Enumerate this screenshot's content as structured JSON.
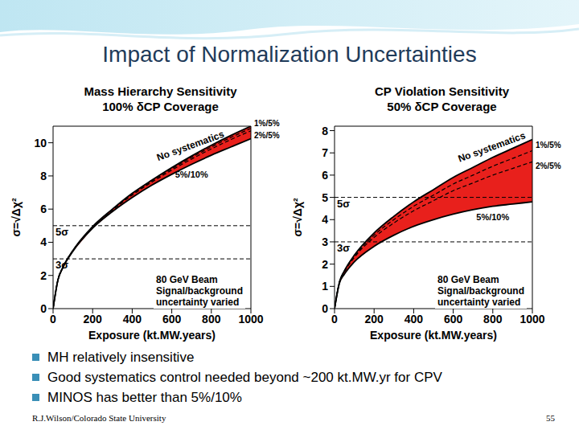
{
  "slide_title": "Impact of Normalization Uncertainties",
  "chart_data": [
    {
      "type": "line",
      "title": "Mass Hierarchy Sensitivity",
      "subtitle": "100% δCP Coverage",
      "x_label": "Exposure (kt.MW.years)",
      "y_label": "σ=√Δχ²",
      "color": "#e8201c",
      "x": [
        0,
        25,
        50,
        100,
        200,
        300,
        400,
        500,
        600,
        700,
        800,
        900,
        1000
      ],
      "series": [
        {
          "name": "No systematics",
          "color": "#000000",
          "line_style": "solid",
          "values": [
            0,
            1.75,
            2.5,
            3.5,
            4.95,
            6.0,
            6.95,
            7.75,
            8.5,
            9.2,
            9.85,
            10.45,
            11.0
          ]
        },
        {
          "name": "1%/5%",
          "color": "#000000",
          "line_style": "dashed",
          "values": [
            0,
            1.75,
            2.5,
            3.5,
            4.93,
            5.97,
            6.9,
            7.7,
            8.43,
            9.12,
            9.75,
            10.33,
            10.87
          ]
        },
        {
          "name": "2%/5%",
          "color": "#000000",
          "line_style": "dashed",
          "values": [
            0,
            1.75,
            2.5,
            3.48,
            4.9,
            5.93,
            6.85,
            7.63,
            8.35,
            9.02,
            9.63,
            10.2,
            10.72
          ]
        },
        {
          "name": "5%/10%",
          "color": "#000000",
          "line_style": "solid",
          "values": [
            0,
            1.75,
            2.48,
            3.45,
            4.85,
            5.85,
            6.7,
            7.45,
            8.1,
            8.7,
            9.25,
            9.75,
            10.25
          ]
        }
      ],
      "xlim": [
        0,
        1000
      ],
      "xticks": [
        0,
        200,
        400,
        600,
        800,
        1000
      ],
      "ylim": [
        0,
        11
      ],
      "yticks": [
        0,
        2,
        4,
        6,
        8,
        10
      ],
      "hlines": [
        {
          "value": 5,
          "label": "5σ"
        },
        {
          "value": 3,
          "label": "3σ"
        }
      ],
      "annotation": [
        "80 GeV Beam",
        "Signal/background",
        "uncertainty varied"
      ]
    },
    {
      "type": "line",
      "title": "CP Violation Sensitivity",
      "subtitle": "50% δCP Coverage",
      "x_label": "Exposure (kt.MW.years)",
      "y_label": "σ=√Δχ²",
      "color": "#e8201c",
      "x": [
        0,
        25,
        50,
        100,
        200,
        300,
        400,
        500,
        600,
        700,
        800,
        900,
        1000
      ],
      "series": [
        {
          "name": "No systematics",
          "color": "#000000",
          "line_style": "solid",
          "values": [
            0,
            1.2,
            1.7,
            2.4,
            3.4,
            4.15,
            4.8,
            5.35,
            5.9,
            6.35,
            6.8,
            7.2,
            7.6
          ]
        },
        {
          "name": "1%/5%",
          "color": "#000000",
          "line_style": "dashed",
          "values": [
            0,
            1.2,
            1.7,
            2.35,
            3.3,
            4.0,
            4.6,
            5.1,
            5.6,
            6.0,
            6.4,
            6.75,
            7.1
          ]
        },
        {
          "name": "2%/5%",
          "color": "#000000",
          "line_style": "dashed",
          "values": [
            0,
            1.2,
            1.65,
            2.3,
            3.2,
            3.85,
            4.4,
            4.85,
            5.3,
            5.65,
            6.0,
            6.3,
            6.6
          ]
        },
        {
          "name": "5%/10%",
          "color": "#000000",
          "line_style": "solid",
          "values": [
            0,
            1.15,
            1.55,
            2.1,
            2.8,
            3.3,
            3.7,
            4.0,
            4.25,
            4.45,
            4.6,
            4.7,
            4.8
          ]
        }
      ],
      "xlim": [
        0,
        1000
      ],
      "xticks": [
        0,
        200,
        400,
        600,
        800,
        1000
      ],
      "ylim": [
        0,
        8.2
      ],
      "yticks": [
        0,
        1,
        2,
        3,
        4,
        5,
        6,
        7,
        8
      ],
      "hlines": [
        {
          "value": 5,
          "label": "5σ"
        },
        {
          "value": 3,
          "label": "3σ"
        }
      ],
      "annotation": [
        "80 GeV Beam",
        "Signal/background",
        "uncertainty varied"
      ]
    }
  ],
  "bullets": [
    "MH relatively insensitive",
    "Good systematics control needed beyond ~200 kt.MW.yr for CPV",
    "MINOS has better than 5%/10%"
  ],
  "footer": "R.J.Wilson/Colorado State University",
  "page": 55
}
